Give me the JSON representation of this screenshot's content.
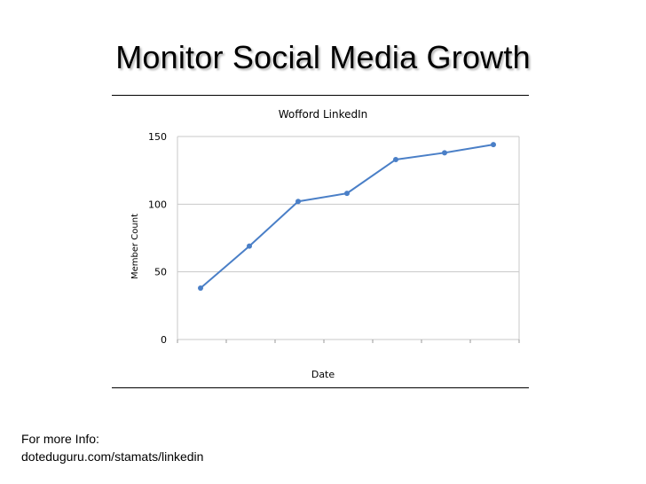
{
  "slide": {
    "title": "Monitor Social Media Growth",
    "footer_label": "For more Info:",
    "footer_link": "doteduguru.com/stamats/linkedin"
  },
  "chart_data": {
    "type": "line",
    "title": "Wofford LinkedIn",
    "xlabel": "Date",
    "ylabel": "Member Count",
    "categories": [
      "",
      "",
      "",
      "",
      "",
      "",
      ""
    ],
    "series": [
      {
        "name": "Member Count",
        "values": [
          38,
          69,
          102,
          108,
          133,
          138,
          144
        ]
      }
    ],
    "ylim": [
      0,
      150
    ],
    "yticks": [
      0,
      50,
      100,
      150
    ],
    "grid": true,
    "line_color": "#4a7fc7",
    "grid_color": "#c8c8c8"
  }
}
